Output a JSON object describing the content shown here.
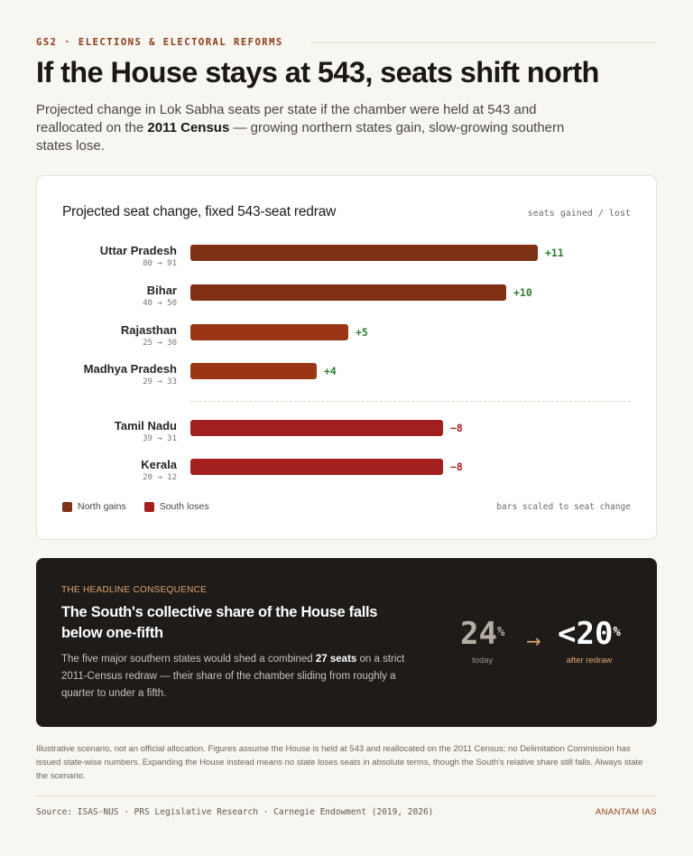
{
  "eyebrow": "GS2 · ELECTIONS & ELECTORAL REFORMS",
  "headline": "If the House stays at 543, seats shift north",
  "dek": {
    "before": "Projected change in Lok Sabha seats per state if the chamber were held at 543 and reallocated on the ",
    "bold": "2011 Census",
    "after": " — growing northern states gain, slow-growing southern states lose."
  },
  "card": {
    "title": "Projected seat change, fixed 543-seat redraw",
    "note": "seats gained / lost",
    "footnote": "bars scaled to seat change",
    "legend": [
      {
        "label": "North gains",
        "color": "#7e3115"
      },
      {
        "label": "South loses",
        "color": "#a3201f"
      }
    ]
  },
  "chart_data": {
    "type": "bar",
    "orientation": "horizontal",
    "title": "Projected seat change, fixed 543-seat redraw",
    "categories": [
      "Uttar Pradesh",
      "Bihar",
      "Rajasthan",
      "Madhya Pradesh",
      "Tamil Nadu",
      "Kerala"
    ],
    "values": [
      11,
      10,
      5,
      4,
      -8,
      -8
    ],
    "value_labels": [
      "+11",
      "+10",
      "+5",
      "+4",
      "−8",
      "−8"
    ],
    "seat_transitions": [
      "80 → 91",
      "40 → 50",
      "25 → 30",
      "29 → 33",
      "39 → 31",
      "20 → 12"
    ],
    "groups": [
      "North gains",
      "North gains",
      "North gains",
      "North gains",
      "South loses",
      "South loses"
    ],
    "bar_colors": [
      "#7e3115",
      "#802f15",
      "#9a3516",
      "#9a3516",
      "#a3201f",
      "#a3201f"
    ],
    "value_colors": [
      "#2e7d32",
      "#2e7d32",
      "#2e7d32",
      "#2e7d32",
      "#a3201f",
      "#a3201f"
    ],
    "scale": "bar length proportional to absolute seat change",
    "legend": [
      "North gains",
      "South loses"
    ]
  },
  "consequence": {
    "eyebrow": "THE HEADLINE CONSEQUENCE",
    "title": "The South's collective share of the House falls below one-fifth",
    "body_before": "The five major southern states would shed a combined ",
    "body_bold": "27 seats",
    "body_after": " on a strict 2011-Census redraw — their share of the chamber sliding from roughly a quarter to under a fifth.",
    "today_value": "24",
    "today_unit": "%",
    "today_label": "today",
    "arrow": "→",
    "after_value": "<20",
    "after_unit": "%",
    "after_label": "after redraw"
  },
  "fine_print": "Illustrative scenario, not an official allocation. Figures assume the House is held at 543 and reallocated on the 2011 Census; no Delimitation Commission has issued state-wise numbers. Expanding the House instead means no state loses seats in absolute terms, though the South's relative share still falls. Always state the scenario.",
  "source": "Source: ISAS-NUS · PRS Legislative Research · Carnegie Endowment (2019, 2026)",
  "brand": "ANANTAM IAS"
}
